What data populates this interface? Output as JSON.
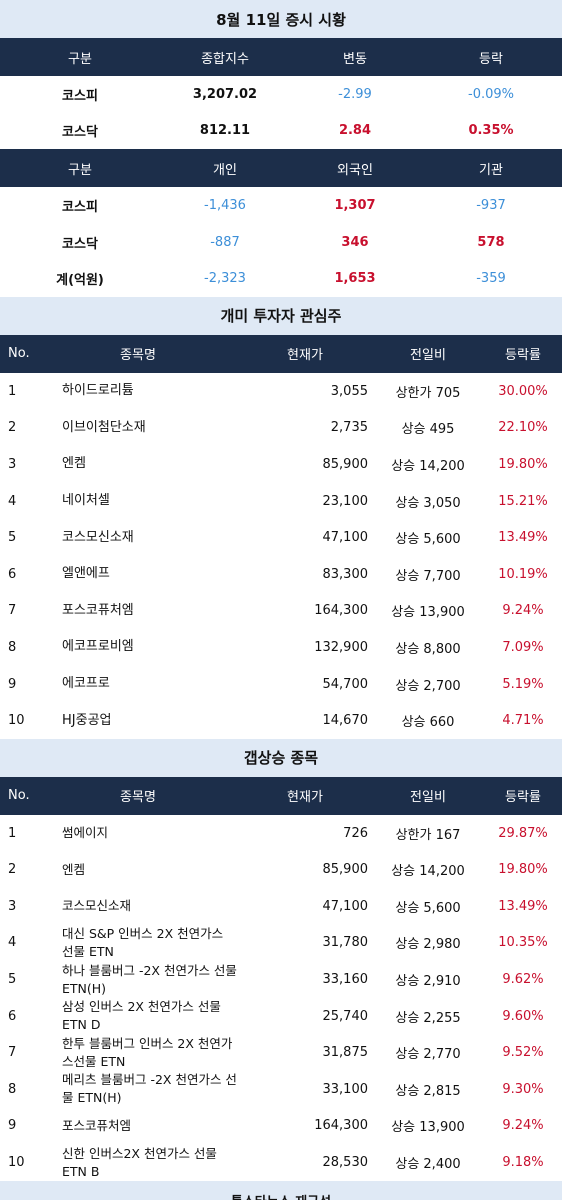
{
  "market": {
    "title": "8월 11일 증시 시황",
    "index_headers": [
      "구분",
      "종합지수",
      "변동",
      "등락"
    ],
    "index_rows": [
      {
        "name": "코스피",
        "index": "3,207.02",
        "change": "-2.99",
        "rate": "-0.09%",
        "dir": "down"
      },
      {
        "name": "코스닥",
        "index": "812.11",
        "change": "2.84",
        "rate": "0.35%",
        "dir": "up"
      }
    ],
    "investor_headers": [
      "구분",
      "개인",
      "외국인",
      "기관"
    ],
    "investor_rows": [
      {
        "name": "코스피",
        "individual": "-1,436",
        "foreign": "1,307",
        "institution": "-937"
      },
      {
        "name": "코스닥",
        "individual": "-887",
        "foreign": "346",
        "institution": "578"
      },
      {
        "name": "계(억원)",
        "individual": "-2,323",
        "foreign": "1,653",
        "institution": "-359"
      }
    ],
    "colors": {
      "up": "#c8102e",
      "down": "#3d8fd8",
      "header": "#1c2e4a",
      "band": "#dfe9f5"
    }
  },
  "retail": {
    "title": "개미 투자자 관심주",
    "headers": [
      "No.",
      "종목명",
      "현재가",
      "전일비",
      "등락률"
    ],
    "rows": [
      {
        "no": "1",
        "name": "하이드로리튬",
        "price": "3,055",
        "change": "상한가 705",
        "rate": "30.00%"
      },
      {
        "no": "2",
        "name": "이브이첨단소재",
        "price": "2,735",
        "change": "상승 495",
        "rate": "22.10%"
      },
      {
        "no": "3",
        "name": "엔켐",
        "price": "85,900",
        "change": "상승 14,200",
        "rate": "19.80%"
      },
      {
        "no": "4",
        "name": "네이처셀",
        "price": "23,100",
        "change": "상승 3,050",
        "rate": "15.21%"
      },
      {
        "no": "5",
        "name": "코스모신소재",
        "price": "47,100",
        "change": "상승 5,600",
        "rate": "13.49%"
      },
      {
        "no": "6",
        "name": "엘앤에프",
        "price": "83,300",
        "change": "상승 7,700",
        "rate": "10.19%"
      },
      {
        "no": "7",
        "name": "포스코퓨처엠",
        "price": "164,300",
        "change": "상승 13,900",
        "rate": "9.24%"
      },
      {
        "no": "8",
        "name": "에코프로비엠",
        "price": "132,900",
        "change": "상승 8,800",
        "rate": "7.09%"
      },
      {
        "no": "9",
        "name": "에코프로",
        "price": "54,700",
        "change": "상승 2,700",
        "rate": "5.19%"
      },
      {
        "no": "10",
        "name": "HJ중공업",
        "price": "14,670",
        "change": "상승 660",
        "rate": "4.71%"
      }
    ]
  },
  "gap": {
    "title": "갭상승 종목",
    "headers": [
      "No.",
      "종목명",
      "현재가",
      "전일비",
      "등락률"
    ],
    "rows": [
      {
        "no": "1",
        "name": "썸에이지",
        "price": "726",
        "change": "상한가 167",
        "rate": "29.87%"
      },
      {
        "no": "2",
        "name": "엔켐",
        "price": "85,900",
        "change": "상승 14,200",
        "rate": "19.80%"
      },
      {
        "no": "3",
        "name": "코스모신소재",
        "price": "47,100",
        "change": "상승 5,600",
        "rate": "13.49%"
      },
      {
        "no": "4",
        "name": "대신 S&P 인버스 2X 천연가스 선물 ETN",
        "price": "31,780",
        "change": "상승 2,980",
        "rate": "10.35%"
      },
      {
        "no": "5",
        "name": "하나 블룸버그 -2X 천연가스 선물 ETN(H)",
        "price": "33,160",
        "change": "상승 2,910",
        "rate": "9.62%"
      },
      {
        "no": "6",
        "name": "삼성 인버스 2X 천연가스 선물 ETN D",
        "price": "25,740",
        "change": "상승 2,255",
        "rate": "9.60%"
      },
      {
        "no": "7",
        "name": "한투 블룸버그 인버스 2X 천연가스선물 ETN",
        "price": "31,875",
        "change": "상승 2,770",
        "rate": "9.52%"
      },
      {
        "no": "8",
        "name": "메리츠 블룸버그 -2X 천연가스 선물 ETN(H)",
        "price": "33,100",
        "change": "상승 2,815",
        "rate": "9.30%"
      },
      {
        "no": "9",
        "name": "포스코퓨처엠",
        "price": "164,300",
        "change": "상승 13,900",
        "rate": "9.24%"
      },
      {
        "no": "10",
        "name": "신한 인버스2X 천연가스 선물 ETN B",
        "price": "28,530",
        "change": "상승 2,400",
        "rate": "9.18%"
      }
    ]
  },
  "footer": {
    "text": "톱스타뉴스 재구성"
  }
}
